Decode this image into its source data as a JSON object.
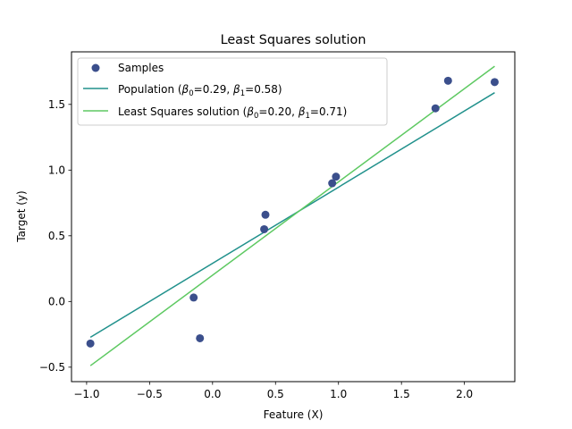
{
  "chart_data": {
    "type": "scatter",
    "title": "Least Squares solution",
    "xlabel": "Feature (X)",
    "ylabel": "Target (y)",
    "xlim": [
      -1.12,
      2.4
    ],
    "ylim": [
      -0.61,
      1.9
    ],
    "grid": false,
    "legend_position": "top-left",
    "x_ticks": [
      -1.0,
      -0.5,
      0.0,
      0.5,
      1.0,
      1.5,
      2.0
    ],
    "x_tick_labels": [
      "−1.0",
      "−0.5",
      "0.0",
      "0.5",
      "1.0",
      "1.5",
      "2.0"
    ],
    "y_ticks": [
      -0.5,
      0.0,
      0.5,
      1.0,
      1.5
    ],
    "y_tick_labels": [
      "−0.5",
      "0.0",
      "0.5",
      "1.0",
      "1.5"
    ],
    "series": [
      {
        "name": "Samples",
        "kind": "scatter",
        "color": "#3b4f8c",
        "points": [
          {
            "x": -0.97,
            "y": -0.32
          },
          {
            "x": -0.15,
            "y": 0.03
          },
          {
            "x": -0.1,
            "y": -0.28
          },
          {
            "x": 0.41,
            "y": 0.55
          },
          {
            "x": 0.42,
            "y": 0.66
          },
          {
            "x": 0.95,
            "y": 0.9
          },
          {
            "x": 0.98,
            "y": 0.95
          },
          {
            "x": 1.77,
            "y": 1.47
          },
          {
            "x": 1.87,
            "y": 1.68
          },
          {
            "x": 2.24,
            "y": 1.67
          }
        ]
      },
      {
        "name_prefix": "Population (",
        "name_b0_value": "=0.29, ",
        "name_b1_value": "=0.58)",
        "kind": "line",
        "color": "#21918c",
        "intercept": 0.29,
        "slope": 0.58,
        "x_range": [
          -0.97,
          2.24
        ]
      },
      {
        "name_prefix": "Least Squares solution (",
        "name_b0_value": "=0.20, ",
        "name_b1_value": "=0.71)",
        "kind": "line",
        "color": "#5ec962",
        "intercept": 0.2,
        "slope": 0.71,
        "x_range": [
          -0.97,
          2.24
        ]
      }
    ],
    "beta_symbol": "β",
    "beta0_subscript": "0",
    "beta1_subscript": "1"
  }
}
